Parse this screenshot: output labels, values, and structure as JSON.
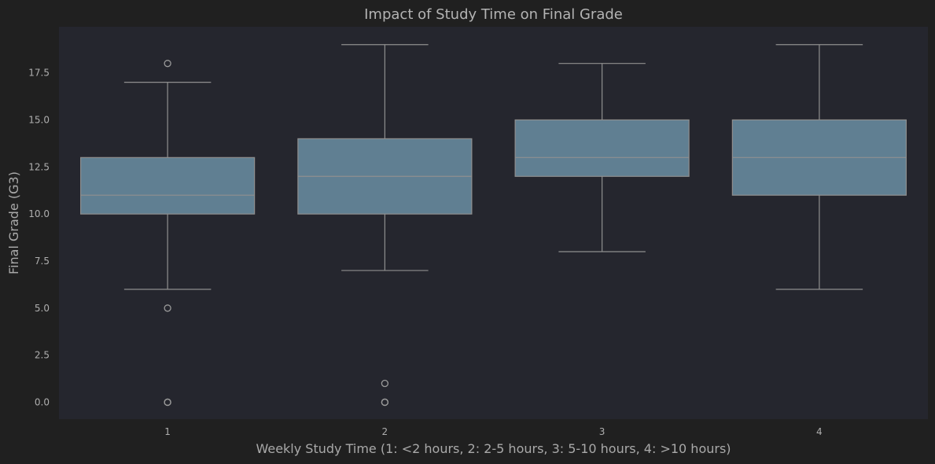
{
  "chart_data": {
    "type": "box",
    "title": "Impact of Study Time on Final Grade",
    "xlabel": "Weekly Study Time (1: <2 hours, 2: 2-5 hours, 3: 5-10 hours, 4: >10 hours)",
    "ylabel": "Final Grade (G3)",
    "ylim": [
      -0.9,
      19.95
    ],
    "yticks": [
      0.0,
      2.5,
      5.0,
      7.5,
      10.0,
      12.5,
      15.0,
      17.5
    ],
    "ytick_labels": [
      "0.0",
      "2.5",
      "5.0",
      "7.5",
      "10.0",
      "12.5",
      "15.0",
      "17.5"
    ],
    "grid": false,
    "categories": [
      "1",
      "2",
      "3",
      "4"
    ],
    "boxes": [
      {
        "category": "1",
        "whisker_low": 6,
        "q1": 10,
        "median": 11,
        "q3": 13,
        "whisker_high": 17,
        "outliers": [
          18,
          5,
          0,
          0
        ]
      },
      {
        "category": "2",
        "whisker_low": 7,
        "q1": 10,
        "median": 12,
        "q3": 14,
        "whisker_high": 19,
        "outliers": [
          1,
          0,
          0
        ]
      },
      {
        "category": "3",
        "whisker_low": 8,
        "q1": 12,
        "median": 13,
        "q3": 15,
        "whisker_high": 18,
        "outliers": []
      },
      {
        "category": "4",
        "whisker_low": 6,
        "q1": 11,
        "median": 13,
        "q3": 15,
        "whisker_high": 19,
        "outliers": []
      }
    ],
    "colors": {
      "figure_bg": "#202020",
      "plot_bg": "#25262e",
      "box_fill": "#607f92",
      "line": "#8f8f8f",
      "text": "#aeaeae"
    }
  }
}
